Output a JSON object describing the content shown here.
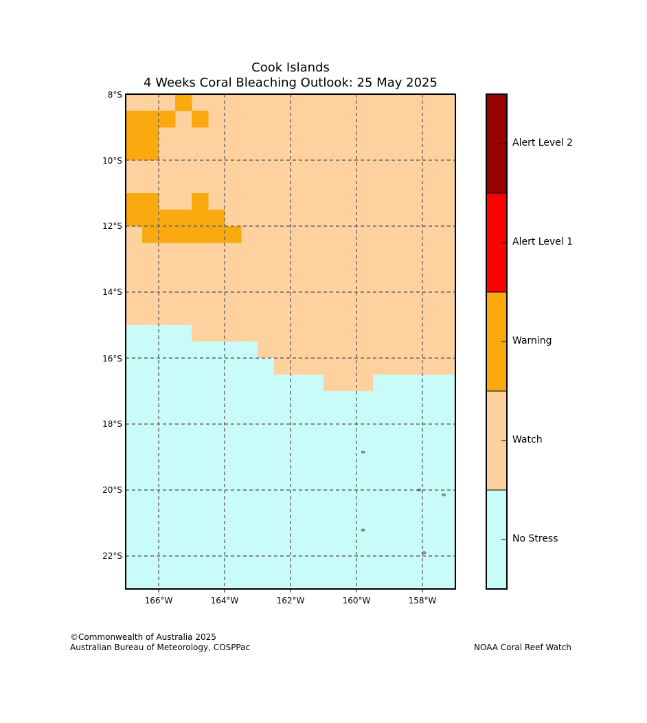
{
  "title": {
    "line1": "Cook Islands",
    "line2": "4 Weeks Coral Bleaching Outlook: 25 May 2025"
  },
  "map": {
    "lat_ticks": [
      "8°S",
      "10°S",
      "12°S",
      "14°S",
      "16°S",
      "18°S",
      "20°S",
      "22°S"
    ],
    "lon_ticks": [
      "166°W",
      "164°W",
      "162°W",
      "160°W",
      "158°W"
    ],
    "lon_range": [
      -167,
      -157
    ],
    "lat_range": [
      -23,
      -8
    ],
    "cell_deg": 0.5,
    "background_level": "Watch",
    "cells": [
      {
        "lon": -165.5,
        "lat": -8.0,
        "level": "Warning"
      },
      {
        "lon": -167.0,
        "lat": -8.5,
        "level": "Warning"
      },
      {
        "lon": -166.5,
        "lat": -8.5,
        "level": "Warning"
      },
      {
        "lon": -166.0,
        "lat": -8.5,
        "level": "Warning"
      },
      {
        "lon": -165.0,
        "lat": -8.5,
        "level": "Warning"
      },
      {
        "lon": -167.0,
        "lat": -9.0,
        "level": "Warning"
      },
      {
        "lon": -166.5,
        "lat": -9.0,
        "level": "Warning"
      },
      {
        "lon": -167.0,
        "lat": -9.5,
        "level": "Warning"
      },
      {
        "lon": -166.5,
        "lat": -9.5,
        "level": "Warning"
      },
      {
        "lon": -167.0,
        "lat": -11.0,
        "level": "Warning"
      },
      {
        "lon": -166.5,
        "lat": -11.0,
        "level": "Warning"
      },
      {
        "lon": -165.0,
        "lat": -11.0,
        "level": "Warning"
      },
      {
        "lon": -167.0,
        "lat": -11.5,
        "level": "Warning"
      },
      {
        "lon": -166.5,
        "lat": -11.5,
        "level": "Warning"
      },
      {
        "lon": -166.0,
        "lat": -11.5,
        "level": "Warning"
      },
      {
        "lon": -165.5,
        "lat": -11.5,
        "level": "Warning"
      },
      {
        "lon": -165.0,
        "lat": -11.5,
        "level": "Warning"
      },
      {
        "lon": -164.5,
        "lat": -11.5,
        "level": "Warning"
      },
      {
        "lon": -166.5,
        "lat": -12.0,
        "level": "Warning"
      },
      {
        "lon": -166.0,
        "lat": -12.0,
        "level": "Warning"
      },
      {
        "lon": -165.5,
        "lat": -12.0,
        "level": "Warning"
      },
      {
        "lon": -165.0,
        "lat": -12.0,
        "level": "Warning"
      },
      {
        "lon": -164.5,
        "lat": -12.0,
        "level": "Warning"
      },
      {
        "lon": -164.0,
        "lat": -12.0,
        "level": "Warning"
      }
    ],
    "no_stress_boundary": [
      {
        "lon_from": -167.0,
        "lon_to": -166.0,
        "lat_top": -15.0
      },
      {
        "lon_from": -166.0,
        "lon_to": -165.0,
        "lat_top": -15.0
      },
      {
        "lon_from": -165.0,
        "lon_to": -163.0,
        "lat_top": -15.5
      },
      {
        "lon_from": -163.0,
        "lon_to": -162.5,
        "lat_top": -16.0
      },
      {
        "lon_from": -162.5,
        "lon_to": -161.0,
        "lat_top": -16.5
      },
      {
        "lon_from": -161.0,
        "lon_to": -159.5,
        "lat_top": -17.0
      },
      {
        "lon_from": -159.5,
        "lon_to": -157.0,
        "lat_top": -16.5
      }
    ],
    "islands": [
      {
        "lon": -159.8,
        "lat": -18.85
      },
      {
        "lon": -159.8,
        "lat": -21.22
      },
      {
        "lon": -158.1,
        "lat": -20.0
      },
      {
        "lon": -157.35,
        "lat": -20.15
      },
      {
        "lon": -157.95,
        "lat": -21.9
      }
    ]
  },
  "colorbar": {
    "levels": [
      {
        "label": "Alert Level 2",
        "color": "#990000"
      },
      {
        "label": "Alert Level 1",
        "color": "#ff0000"
      },
      {
        "label": "Warning",
        "color": "#faaa0e"
      },
      {
        "label": "Watch",
        "color": "#fed19e"
      },
      {
        "label": "No Stress",
        "color": "#c9fbf8"
      }
    ]
  },
  "footer": {
    "copyright": "©Commonwealth of Australia 2025",
    "agency": "Australian Bureau of Meteorology, COSPPac",
    "source": "NOAA Coral Reef Watch"
  }
}
